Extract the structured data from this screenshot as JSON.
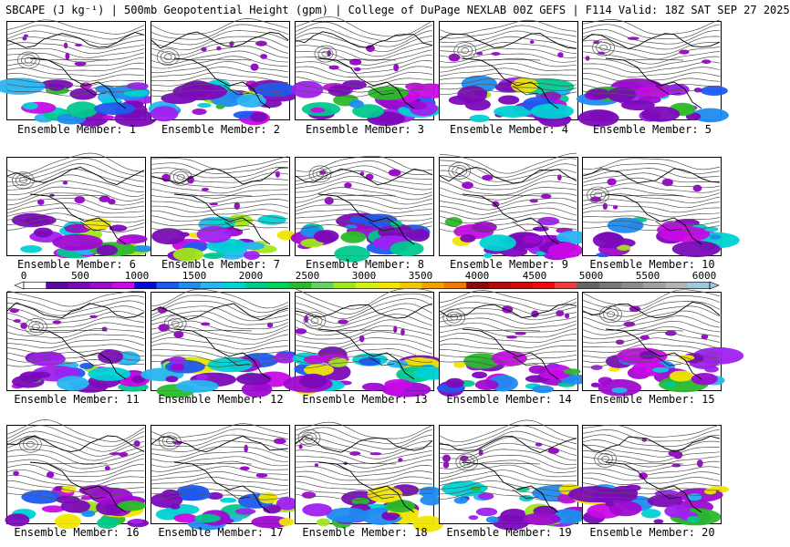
{
  "header": {
    "title": "SBCAPE (J kg⁻¹) | 500mb Geopotential Height (gpm) | College of DuPage NEXLAB 00Z GEFS | F114 Valid: 18Z SAT SEP 27 2025"
  },
  "colorbar": {
    "ticks": [
      "0",
      "500",
      "1000",
      "1500",
      "2000",
      "2500",
      "3000",
      "3500",
      "4000",
      "4500",
      "5000",
      "5500",
      "6000"
    ],
    "colors": [
      "#ffffff",
      "#5a0aa0",
      "#7a0ab8",
      "#9e0ad0",
      "#c80ae6",
      "#0a0ad2",
      "#1e5af0",
      "#1e8cf0",
      "#28b4f0",
      "#00d2d2",
      "#00c88c",
      "#00d25a",
      "#2aba2a",
      "#64d264",
      "#a0e61e",
      "#d2f01e",
      "#f0e600",
      "#f0c800",
      "#f0a000",
      "#f07800",
      "#8c0a0a",
      "#b40a0a",
      "#d20a0a",
      "#f00a0a",
      "#f03c3c",
      "#646464",
      "#787878",
      "#8c8c8c",
      "#a0a0a0",
      "#b4b4b4",
      "#a0c8dc"
    ]
  },
  "panels": [
    {
      "caption": "Ensemble Member: 1"
    },
    {
      "caption": "Ensemble Member: 2"
    },
    {
      "caption": "Ensemble Member: 3"
    },
    {
      "caption": "Ensemble Member: 4"
    },
    {
      "caption": "Ensemble Member: 5"
    },
    {
      "caption": "Ensemble Member: 6"
    },
    {
      "caption": "Ensemble Member: 7"
    },
    {
      "caption": "Ensemble Member: 8"
    },
    {
      "caption": "Ensemble Member: 9"
    },
    {
      "caption": "Ensemble Member: 10"
    },
    {
      "caption": "Ensemble Member: 11"
    },
    {
      "caption": "Ensemble Member: 12"
    },
    {
      "caption": "Ensemble Member: 13"
    },
    {
      "caption": "Ensemble Member: 14"
    },
    {
      "caption": "Ensemble Member: 15"
    },
    {
      "caption": "Ensemble Member: 16"
    },
    {
      "caption": "Ensemble Member: 17"
    },
    {
      "caption": "Ensemble Member: 18"
    },
    {
      "caption": "Ensemble Member: 19"
    },
    {
      "caption": "Ensemble Member: 20"
    }
  ]
}
